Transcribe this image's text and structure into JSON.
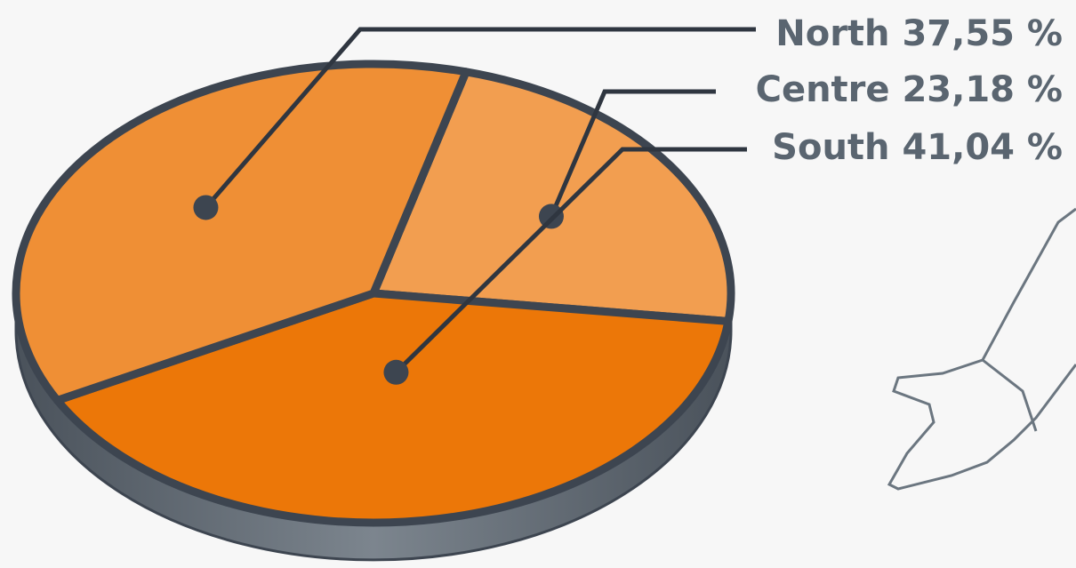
{
  "chart_data": {
    "type": "pie",
    "categories": [
      "North",
      "Centre",
      "South"
    ],
    "values": [
      37.55,
      23.18,
      41.04
    ],
    "value_labels": [
      "37,55 %",
      "23,18 %",
      "41,04 %"
    ],
    "colors": [
      "#ef8f35",
      "#f29e50",
      "#ec7708"
    ]
  }
}
